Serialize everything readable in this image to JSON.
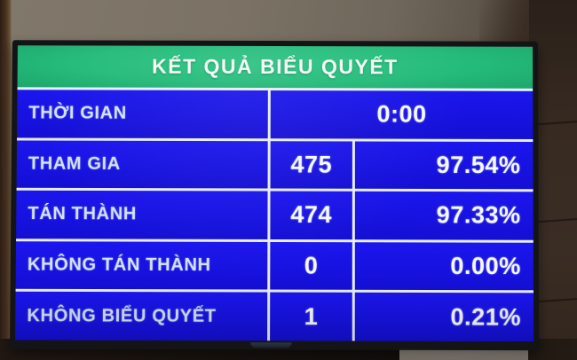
{
  "board": {
    "title": "KẾT QUẢ BIỂU QUYẾT",
    "rows": [
      {
        "label": "THỜI GIAN",
        "time": "0:00"
      },
      {
        "label": "THAM GIA",
        "count": "475",
        "percent": "97.54%"
      },
      {
        "label": "TÁN THÀNH",
        "count": "474",
        "percent": "97.33%"
      },
      {
        "label": "KHÔNG TÁN THÀNH",
        "count": "0",
        "percent": "0.00%"
      },
      {
        "label": "KHÔNG BIỂU QUYẾT",
        "count": "1",
        "percent": "0.21%"
      }
    ],
    "colors": {
      "header_green": "#24bb7a",
      "cell_blue": "#1712e0",
      "grid_line": "#e8eef8",
      "label_text": "#d4e2f6",
      "value_text": "#f6f9ff"
    }
  }
}
